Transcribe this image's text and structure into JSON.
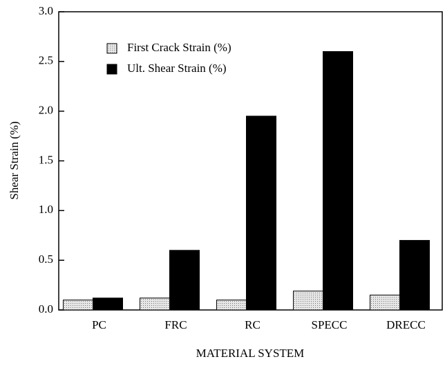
{
  "chart_data": {
    "type": "bar",
    "categories": [
      "PC",
      "FRC",
      "RC",
      "SPECC",
      "DRECC"
    ],
    "series": [
      {
        "name": "First Crack Strain (%)",
        "color": "#d4d4d4",
        "values": [
          0.1,
          0.12,
          0.1,
          0.19,
          0.15
        ]
      },
      {
        "name": "Ult. Shear Strain (%)",
        "color": "#000000",
        "values": [
          0.12,
          0.6,
          1.95,
          2.6,
          0.7
        ]
      }
    ],
    "y_label": "Shear Strain (%)",
    "x_label": "MATERIAL SYSTEM",
    "ylim": [
      0,
      3
    ],
    "yticks": [
      {
        "value": 0,
        "label": "0.0"
      },
      0.5,
      {
        "value": 1,
        "label": "1.0"
      },
      1.5,
      {
        "value": 2,
        "label": "2.0"
      },
      2.5,
      {
        "value": 3,
        "label": "3.0"
      }
    ],
    "legend": "upper left"
  }
}
